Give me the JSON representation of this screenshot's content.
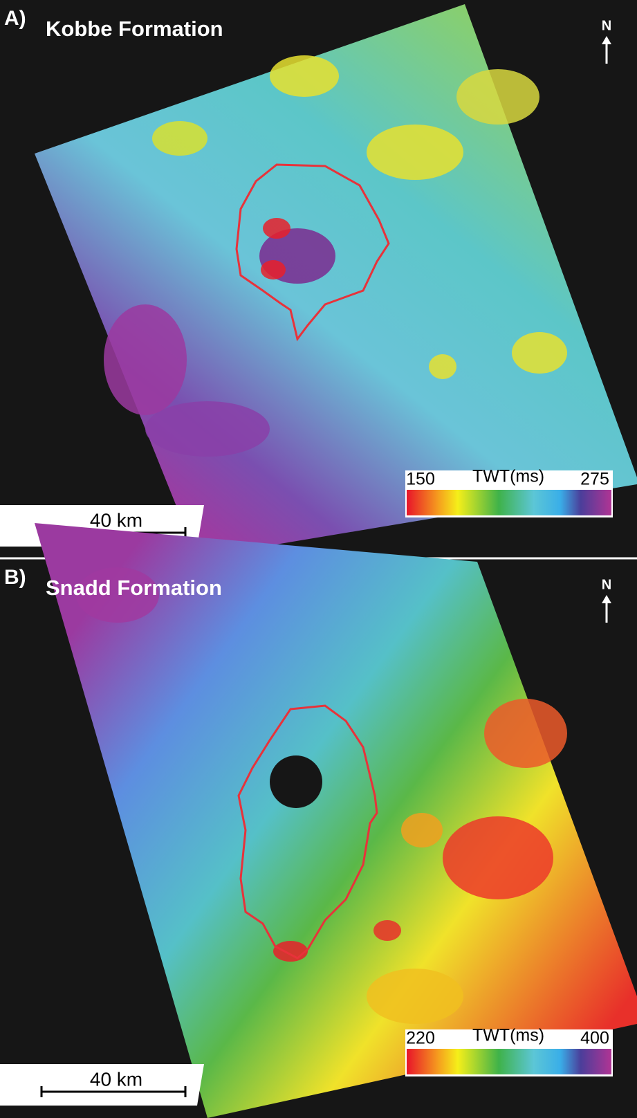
{
  "panels": [
    {
      "label": "A)",
      "title": "Kobbe Formation",
      "north": "N",
      "colorbar": {
        "min": 150,
        "unit": "TWT(ms)",
        "max": 275
      },
      "scale_bar": "40 km"
    },
    {
      "label": "B)",
      "title": "Snadd Formation",
      "north": "N",
      "colorbar": {
        "min": 220,
        "unit": "TWT(ms)",
        "max": 400
      },
      "scale_bar": "40 km"
    }
  ]
}
